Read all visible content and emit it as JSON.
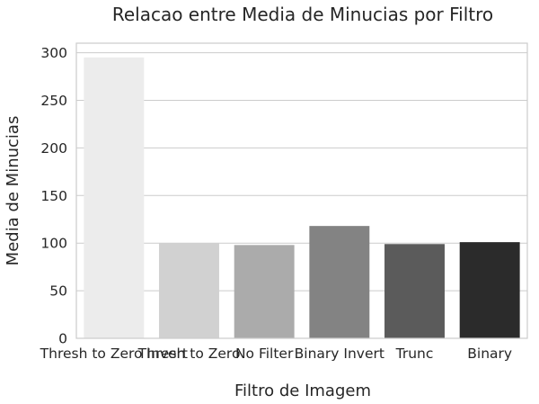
{
  "chart_data": {
    "type": "bar",
    "title": "Relacao entre Media de Minucias por Filtro",
    "xlabel": "Filtro de Imagem",
    "ylabel": "Media de Minucias",
    "categories": [
      "Thresh to Zero Invert",
      "Thresh to Zero",
      "No Filter",
      "Binary Invert",
      "Trunc",
      "Binary"
    ],
    "values": [
      295,
      100,
      98,
      118,
      99,
      101
    ],
    "ylim": [
      0,
      310
    ],
    "yticks": [
      0,
      50,
      100,
      150,
      200,
      250,
      300
    ],
    "grid": true,
    "legend": "none",
    "bar_colors": [
      "#ececec",
      "#d1d1d1",
      "#ababab",
      "#838383",
      "#5b5b5b",
      "#2b2b2b"
    ]
  }
}
